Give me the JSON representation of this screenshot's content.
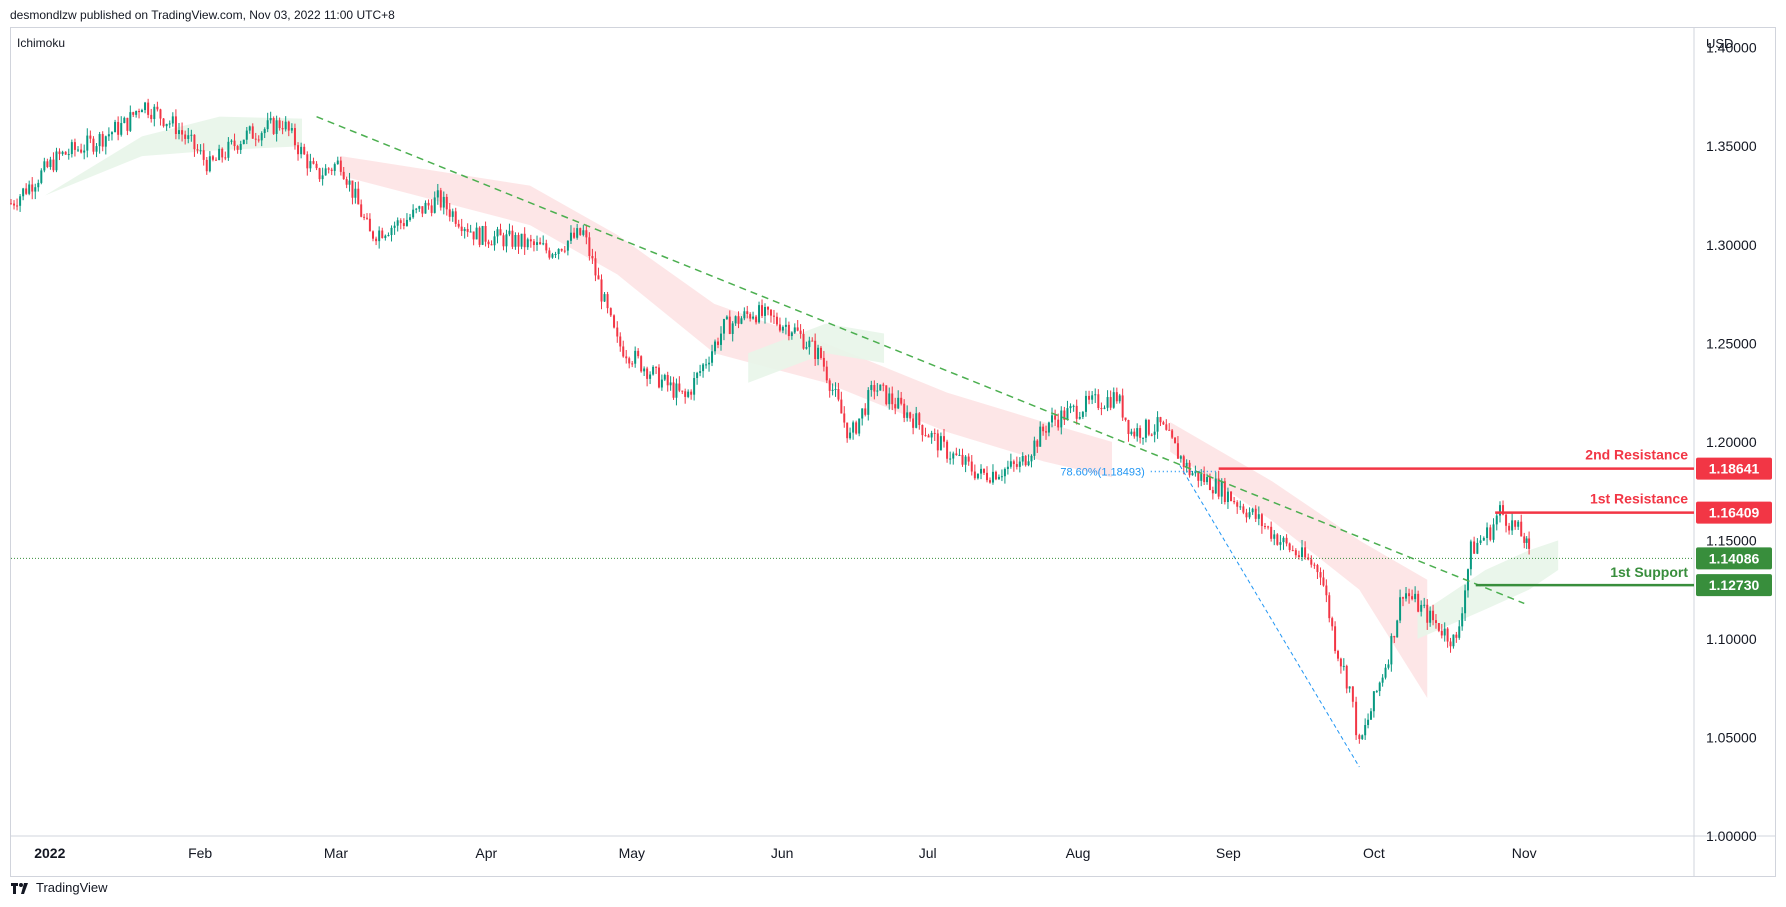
{
  "header": {
    "publisher": "desmondlzw published on TradingView.com, Nov 03, 2022 11:00 UTC+8"
  },
  "indicator": "Ichimoku",
  "currency": "USD",
  "footer": {
    "brand": "TradingView"
  },
  "colors": {
    "up": "#089981",
    "down": "#f23645",
    "resistance": "#f23645",
    "support": "#388e3c",
    "trend": "#4caf50",
    "fib": "#2196f3",
    "cloud_bull": "#e8f5e9",
    "cloud_bear": "#fde3e4"
  },
  "chart_data": {
    "type": "line",
    "title": "",
    "xlabel": "",
    "ylabel": "",
    "ylim": [
      1.0,
      1.41
    ],
    "y_ticks": [
      "1.40000",
      "1.35000",
      "1.30000",
      "1.25000",
      "1.20000",
      "1.15000",
      "1.10000",
      "1.05000",
      "1.00000"
    ],
    "x_ticks": [
      {
        "label": "2022",
        "date": "2022-01-01",
        "bold": true
      },
      {
        "label": "Feb",
        "date": "2022-02-01"
      },
      {
        "label": "Mar",
        "date": "2022-03-01"
      },
      {
        "label": "Apr",
        "date": "2022-04-01"
      },
      {
        "label": "May",
        "date": "2022-05-01"
      },
      {
        "label": "Jun",
        "date": "2022-06-01"
      },
      {
        "label": "Jul",
        "date": "2022-07-01"
      },
      {
        "label": "Aug",
        "date": "2022-08-01"
      },
      {
        "label": "Sep",
        "date": "2022-09-01"
      },
      {
        "label": "Oct",
        "date": "2022-10-01"
      },
      {
        "label": "Nov",
        "date": "2022-11-01"
      }
    ],
    "x_range": [
      "2021-12-24",
      "2022-12-06"
    ],
    "series": [
      {
        "kind": "price",
        "x": [
          "2021-12-24",
          "2022-01-03",
          "2022-01-10",
          "2022-01-17",
          "2022-01-20",
          "2022-01-27",
          "2022-02-03",
          "2022-02-10",
          "2022-02-18",
          "2022-02-25",
          "2022-03-02",
          "2022-03-08",
          "2022-03-15",
          "2022-03-22",
          "2022-03-30",
          "2022-04-07",
          "2022-04-14",
          "2022-04-21",
          "2022-04-26",
          "2022-04-28",
          "2022-05-06",
          "2022-05-12",
          "2022-05-20",
          "2022-05-26",
          "2022-06-03",
          "2022-06-09",
          "2022-06-15",
          "2022-06-20",
          "2022-06-28",
          "2022-07-05",
          "2022-07-12",
          "2022-07-20",
          "2022-07-26",
          "2022-08-02",
          "2022-08-09",
          "2022-08-12",
          "2022-08-18",
          "2022-08-24",
          "2022-08-30",
          "2022-09-06",
          "2022-09-13",
          "2022-09-20",
          "2022-09-23",
          "2022-09-26",
          "2022-09-28",
          "2022-10-04",
          "2022-10-07",
          "2022-10-12",
          "2022-10-18",
          "2022-10-21",
          "2022-10-25",
          "2022-10-27",
          "2022-11-01",
          "2022-11-02"
        ],
        "y": [
          1.321,
          1.345,
          1.352,
          1.362,
          1.372,
          1.36,
          1.34,
          1.355,
          1.362,
          1.335,
          1.342,
          1.305,
          1.312,
          1.323,
          1.305,
          1.302,
          1.297,
          1.306,
          1.265,
          1.25,
          1.233,
          1.222,
          1.258,
          1.266,
          1.258,
          1.243,
          1.202,
          1.228,
          1.212,
          1.195,
          1.183,
          1.188,
          1.21,
          1.218,
          1.223,
          1.205,
          1.208,
          1.185,
          1.177,
          1.163,
          1.147,
          1.135,
          1.098,
          1.075,
          1.045,
          1.092,
          1.125,
          1.112,
          1.098,
          1.145,
          1.155,
          1.165,
          1.151,
          1.142
        ]
      }
    ],
    "clouds": [
      {
        "kind": "bullish",
        "x": [
          "2021-12-31",
          "2022-01-20",
          "2022-02-05",
          "2022-02-22"
        ],
        "upper": [
          1.325,
          1.355,
          1.365,
          1.364
        ],
        "lower": [
          1.325,
          1.345,
          1.348,
          1.35
        ]
      },
      {
        "kind": "bearish",
        "x": [
          "2022-03-02",
          "2022-04-10",
          "2022-04-28",
          "2022-05-18",
          "2022-06-10",
          "2022-07-05",
          "2022-07-25",
          "2022-08-08"
        ],
        "upper": [
          1.345,
          1.33,
          1.305,
          1.27,
          1.25,
          1.225,
          1.21,
          1.2
        ],
        "lower": [
          1.335,
          1.31,
          1.285,
          1.245,
          1.23,
          1.205,
          1.19,
          1.182
        ]
      },
      {
        "kind": "bullish",
        "x": [
          "2022-05-25",
          "2022-06-10",
          "2022-06-22"
        ],
        "upper": [
          1.245,
          1.26,
          1.255
        ],
        "lower": [
          1.23,
          1.245,
          1.24
        ]
      },
      {
        "kind": "bearish",
        "x": [
          "2022-08-20",
          "2022-09-10",
          "2022-09-28",
          "2022-10-12"
        ],
        "upper": [
          1.21,
          1.18,
          1.15,
          1.13
        ],
        "lower": [
          1.195,
          1.16,
          1.125,
          1.07
        ]
      },
      {
        "kind": "bullish",
        "x": [
          "2022-10-10",
          "2022-10-24",
          "2022-11-02",
          "2022-11-08"
        ],
        "upper": [
          1.112,
          1.135,
          1.145,
          1.15
        ],
        "lower": [
          1.1,
          1.115,
          1.125,
          1.135
        ]
      }
    ],
    "trendline": {
      "x": [
        "2022-02-25",
        "2022-11-01"
      ],
      "y": [
        1.365,
        1.118
      ]
    },
    "fib_line": {
      "x": [
        "2022-08-22",
        "2022-09-28"
      ],
      "y": [
        1.188,
        1.035
      ]
    },
    "fib_label": "78.60%(1.18493)",
    "fib_value": 1.18493,
    "fib_line_range": [
      "2022-08-16",
      "2022-08-30"
    ],
    "levels": [
      {
        "name": "2nd Resistance",
        "value": 1.18641,
        "label": "1.18641",
        "kind": "resistance",
        "x_start": "2022-08-30"
      },
      {
        "name": "1st Resistance",
        "value": 1.16409,
        "label": "1.16409",
        "kind": "resistance",
        "x_start": "2022-10-26"
      },
      {
        "name": "1st Support",
        "value": 1.1273,
        "label": "1.12730",
        "kind": "support",
        "x_start": "2022-10-22"
      }
    ],
    "current_price": {
      "value": 1.14086,
      "label": "1.14086"
    }
  }
}
